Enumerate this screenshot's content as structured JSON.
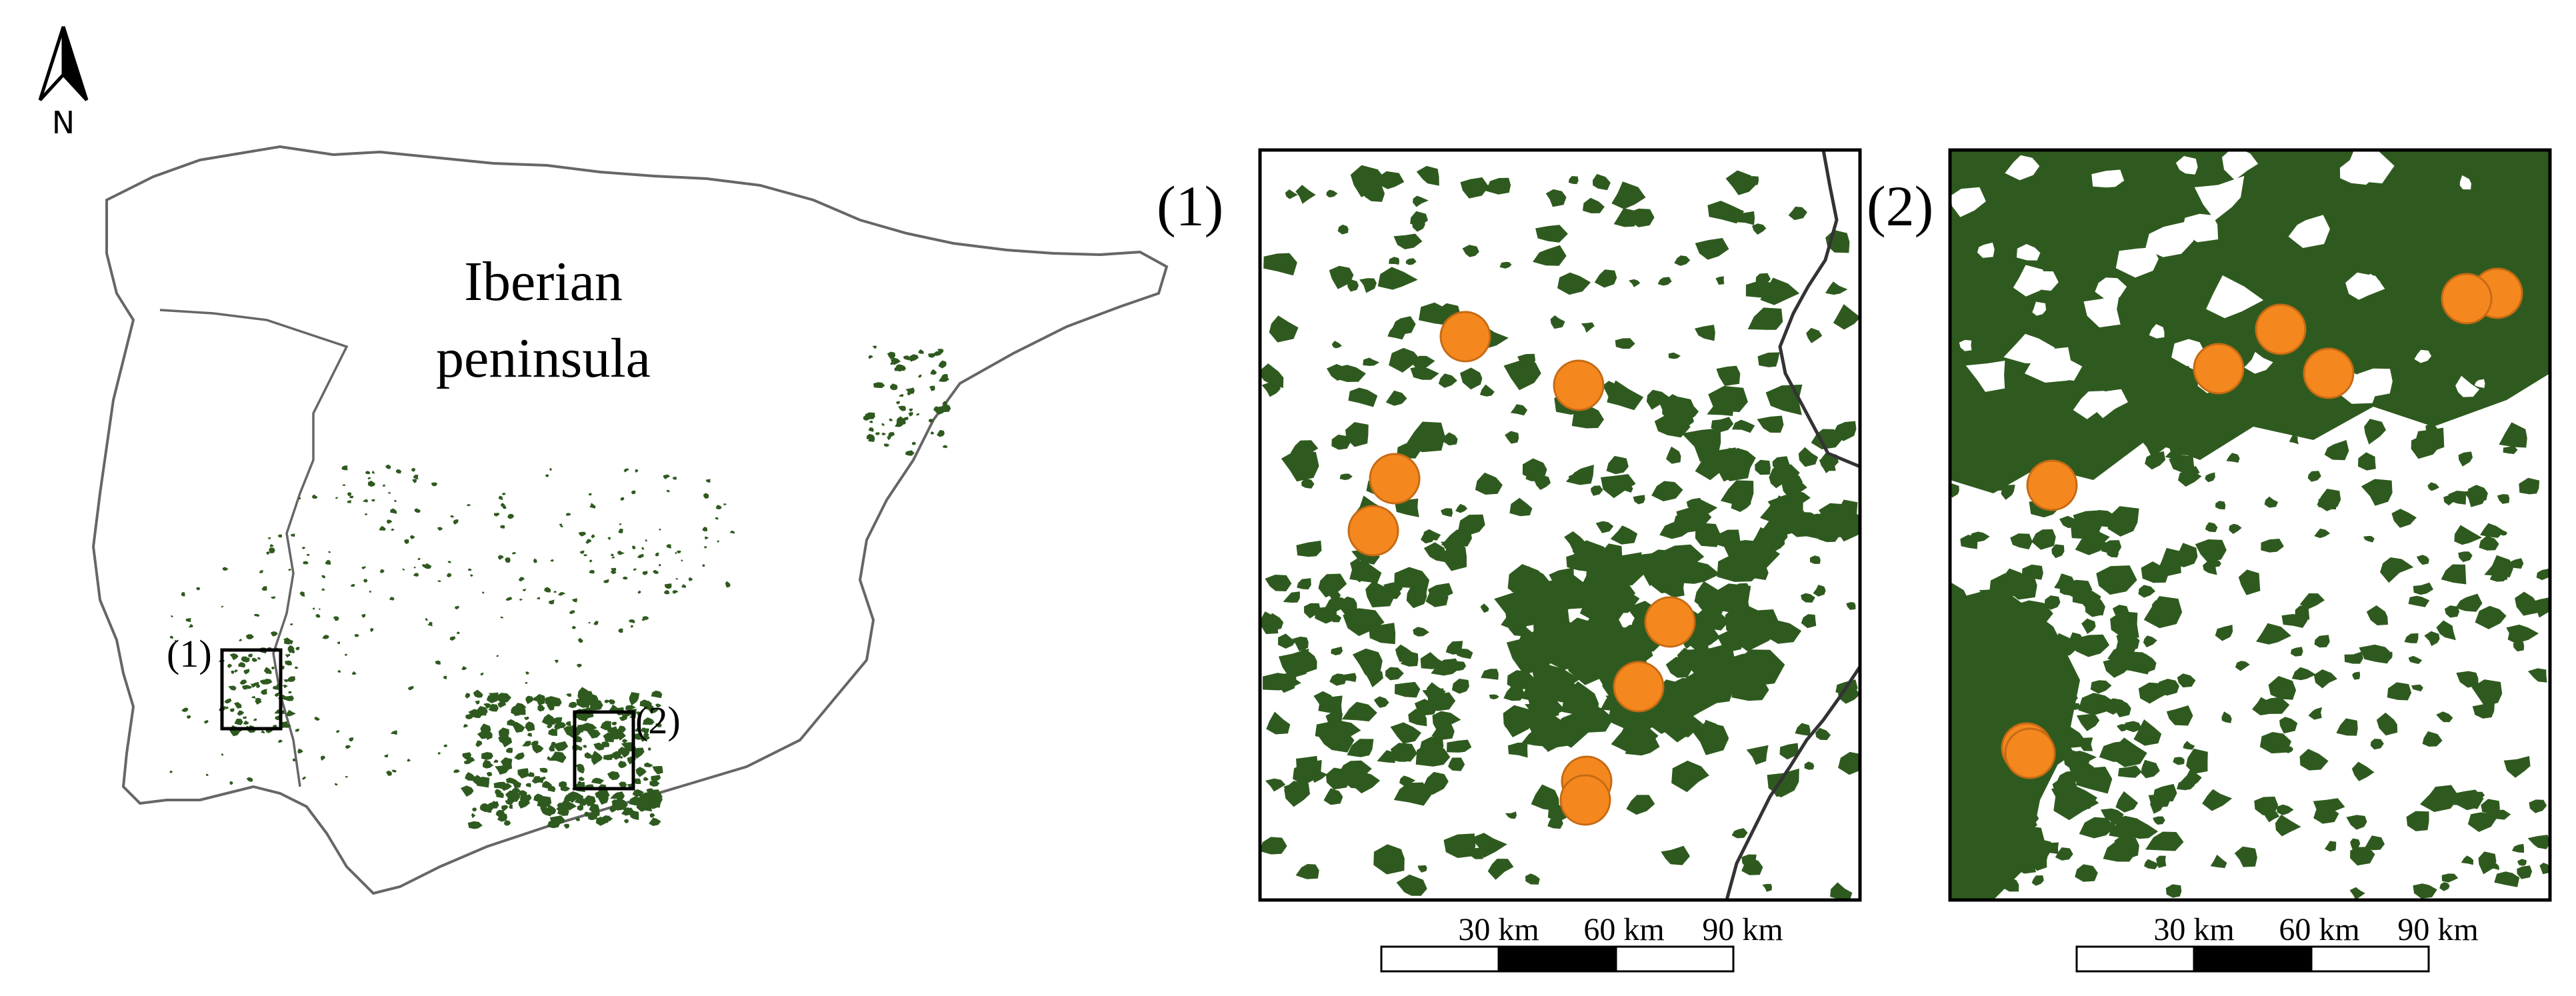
{
  "north_arrow": {
    "label": "N",
    "icon": "north-arrow-icon"
  },
  "overview": {
    "title_line1": "Iberian",
    "title_line2": "peninsula",
    "box1_label": "(1)",
    "box2_label": "(2)"
  },
  "panels": [
    {
      "label": "(1)",
      "scale_labels": [
        "30 km",
        "60 km",
        "90 km"
      ],
      "site_count": 8
    },
    {
      "label": "(2)",
      "scale_labels": [
        "30 km",
        "60 km",
        "90 km"
      ],
      "site_count": 8
    }
  ],
  "colors": {
    "vegetation": "#2f5a1f",
    "site_marker": "#f5871f",
    "site_marker_edge": "#c56b14",
    "outline": "#555555",
    "frame": "#000000"
  }
}
